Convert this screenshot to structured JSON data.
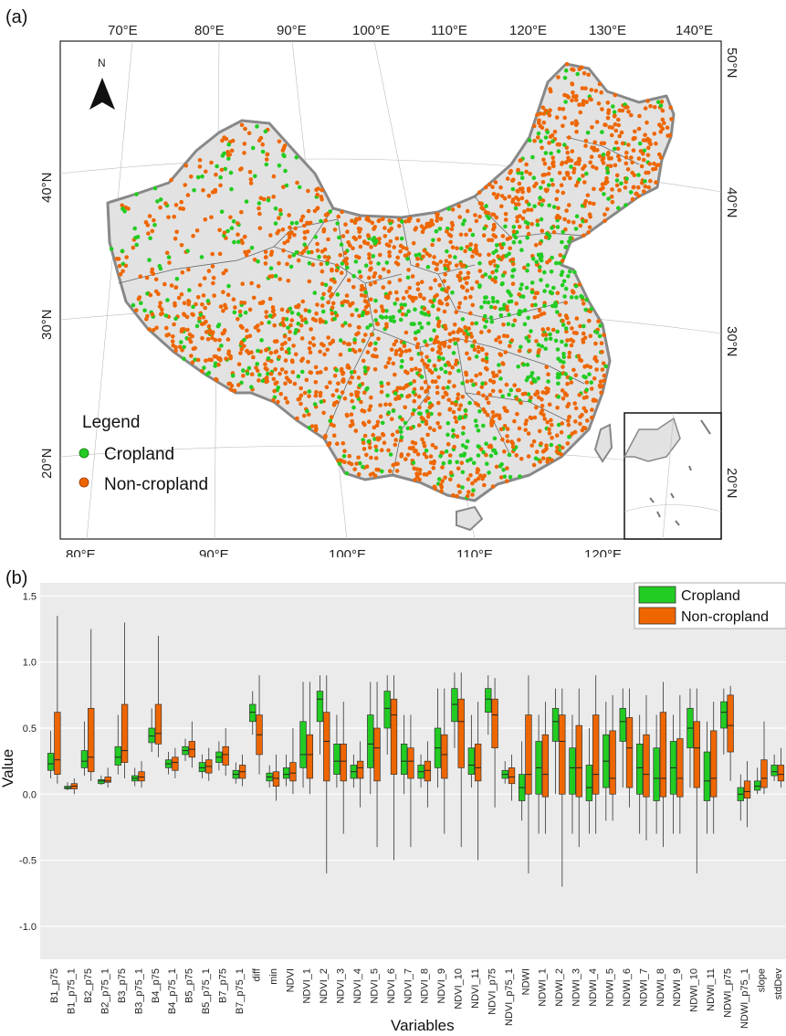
{
  "panel_a": {
    "label": "(a)",
    "north_label": "N",
    "top_ticks": [
      "70°E",
      "80°E",
      "90°E",
      "100°E",
      "110°E",
      "120°E",
      "130°E",
      "140°E"
    ],
    "bottom_ticks": [
      "80°E",
      "90°E",
      "100°E",
      "110°E",
      "120°E"
    ],
    "left_ticks": [
      "40°N",
      "30°N",
      "20°N"
    ],
    "right_ticks": [
      "50°N",
      "40°N",
      "30°N",
      "20°N"
    ],
    "inset_ticks": [
      "20°N"
    ],
    "legend": {
      "title": "Legend",
      "items": [
        {
          "label": "Cropland",
          "color": "#22cc22"
        },
        {
          "label": "Non-cropland",
          "color": "#ee6600"
        }
      ]
    }
  },
  "panel_b": {
    "label": "(b)",
    "chart_data": {
      "type": "box",
      "xlabel": "Variables",
      "ylabel": "Value",
      "ylim": [
        -1.25,
        1.6
      ],
      "yticks": [
        -1.0,
        -0.5,
        0.0,
        0.5,
        1.0,
        1.5
      ],
      "ytick_labels": [
        "-1.0",
        "-0.5",
        "0.0",
        "0.5",
        "1.0",
        "1.5"
      ],
      "legend": [
        {
          "name": "Cropland",
          "color": "#22cc22"
        },
        {
          "name": "Non-cropland",
          "color": "#ee6600"
        }
      ],
      "legend_position": "top-right",
      "grid": true,
      "categories": [
        {
          "name": "B1_p75",
          "crop": [
            0.12,
            0.18,
            0.23,
            0.31,
            0.48
          ],
          "non": [
            0.08,
            0.15,
            0.26,
            0.62,
            1.35
          ]
        },
        {
          "name": "B1_p75_1",
          "crop": [
            0.03,
            0.04,
            0.05,
            0.06,
            0.09
          ],
          "non": [
            0.0,
            0.04,
            0.06,
            0.08,
            0.12
          ]
        },
        {
          "name": "B2_p75",
          "crop": [
            0.14,
            0.2,
            0.25,
            0.33,
            0.55
          ],
          "non": [
            0.1,
            0.17,
            0.28,
            0.65,
            1.25
          ]
        },
        {
          "name": "B2_p75_1",
          "crop": [
            0.07,
            0.08,
            0.1,
            0.11,
            0.14
          ],
          "non": [
            0.05,
            0.09,
            0.1,
            0.13,
            0.2
          ]
        },
        {
          "name": "B3_p75",
          "crop": [
            0.15,
            0.22,
            0.28,
            0.36,
            0.6
          ],
          "non": [
            0.12,
            0.24,
            0.33,
            0.68,
            1.3
          ]
        },
        {
          "name": "B3_p75_1",
          "crop": [
            0.06,
            0.1,
            0.12,
            0.14,
            0.2
          ],
          "non": [
            0.05,
            0.1,
            0.13,
            0.17,
            0.25
          ]
        },
        {
          "name": "B4_p75",
          "crop": [
            0.32,
            0.39,
            0.44,
            0.5,
            0.65
          ],
          "non": [
            0.28,
            0.38,
            0.46,
            0.68,
            1.2
          ]
        },
        {
          "name": "B4_p75_1",
          "crop": [
            0.15,
            0.2,
            0.23,
            0.26,
            0.32
          ],
          "non": [
            0.12,
            0.18,
            0.24,
            0.28,
            0.35
          ]
        },
        {
          "name": "B5_p75",
          "crop": [
            0.25,
            0.3,
            0.33,
            0.36,
            0.42
          ],
          "non": [
            0.2,
            0.28,
            0.34,
            0.4,
            0.55
          ]
        },
        {
          "name": "B5_p75_1",
          "crop": [
            0.12,
            0.17,
            0.2,
            0.24,
            0.3
          ],
          "non": [
            0.1,
            0.16,
            0.21,
            0.26,
            0.35
          ]
        },
        {
          "name": "B7_p75",
          "crop": [
            0.18,
            0.24,
            0.28,
            0.32,
            0.4
          ],
          "non": [
            0.14,
            0.22,
            0.3,
            0.36,
            0.5
          ]
        },
        {
          "name": "B7_p75_1",
          "crop": [
            0.08,
            0.12,
            0.15,
            0.18,
            0.24
          ],
          "non": [
            0.06,
            0.12,
            0.17,
            0.22,
            0.3
          ]
        },
        {
          "name": "diff",
          "crop": [
            0.45,
            0.55,
            0.62,
            0.68,
            0.78
          ],
          "non": [
            0.15,
            0.3,
            0.45,
            0.6,
            0.9
          ]
        },
        {
          "name": "min",
          "crop": [
            0.05,
            0.1,
            0.13,
            0.16,
            0.22
          ],
          "non": [
            -0.05,
            0.06,
            0.12,
            0.17,
            0.3
          ]
        },
        {
          "name": "NDVI",
          "crop": [
            0.06,
            0.12,
            0.15,
            0.2,
            0.3
          ],
          "non": [
            0.0,
            0.1,
            0.16,
            0.24,
            0.5
          ]
        },
        {
          "name": "NDVI_1",
          "crop": [
            0.05,
            0.2,
            0.3,
            0.55,
            0.85
          ],
          "non": [
            0.0,
            0.12,
            0.3,
            0.45,
            0.85
          ]
        },
        {
          "name": "NDVI_2",
          "crop": [
            0.3,
            0.55,
            0.72,
            0.78,
            0.9
          ],
          "non": [
            -0.6,
            0.1,
            0.4,
            0.62,
            0.9
          ]
        },
        {
          "name": "NDVI_3",
          "crop": [
            0.05,
            0.15,
            0.25,
            0.38,
            0.6
          ],
          "non": [
            -0.3,
            0.1,
            0.25,
            0.38,
            0.7
          ]
        },
        {
          "name": "NDVI_4",
          "crop": [
            0.05,
            0.12,
            0.17,
            0.22,
            0.3
          ],
          "non": [
            -0.1,
            0.12,
            0.2,
            0.25,
            0.4
          ]
        },
        {
          "name": "NDVI_5",
          "crop": [
            0.0,
            0.2,
            0.38,
            0.6,
            0.85
          ],
          "non": [
            -0.4,
            0.1,
            0.35,
            0.5,
            0.85
          ]
        },
        {
          "name": "NDVI_6",
          "crop": [
            0.3,
            0.5,
            0.65,
            0.78,
            0.9
          ],
          "non": [
            -0.5,
            0.15,
            0.6,
            0.72,
            0.9
          ]
        },
        {
          "name": "NDVI_7",
          "crop": [
            0.0,
            0.15,
            0.25,
            0.38,
            0.6
          ],
          "non": [
            -0.4,
            0.12,
            0.25,
            0.35,
            0.6
          ]
        },
        {
          "name": "NDVI_8",
          "crop": [
            0.05,
            0.12,
            0.17,
            0.22,
            0.3
          ],
          "non": [
            -0.1,
            0.1,
            0.18,
            0.25,
            0.4
          ]
        },
        {
          "name": "NDVI_9",
          "crop": [
            0.05,
            0.2,
            0.35,
            0.5,
            0.8
          ],
          "non": [
            -0.3,
            0.12,
            0.3,
            0.45,
            0.8
          ]
        },
        {
          "name": "NDVI_10",
          "crop": [
            0.35,
            0.55,
            0.68,
            0.8,
            0.92
          ],
          "non": [
            -0.4,
            0.2,
            0.55,
            0.72,
            0.92
          ]
        },
        {
          "name": "NDVI_11",
          "crop": [
            0.05,
            0.15,
            0.22,
            0.35,
            0.6
          ],
          "non": [
            -0.5,
            0.1,
            0.2,
            0.38,
            0.7
          ]
        },
        {
          "name": "NDVI_p75",
          "crop": [
            0.45,
            0.62,
            0.72,
            0.8,
            0.9
          ],
          "non": [
            -0.1,
            0.35,
            0.6,
            0.72,
            0.88
          ]
        },
        {
          "name": "NDVI_p75_1",
          "crop": [
            0.08,
            0.12,
            0.15,
            0.18,
            0.25
          ],
          "non": [
            -0.05,
            0.08,
            0.13,
            0.2,
            0.3
          ]
        },
        {
          "name": "NDWI",
          "crop": [
            -0.2,
            -0.05,
            0.05,
            0.15,
            0.4
          ],
          "non": [
            -0.6,
            0.0,
            0.15,
            0.6,
            0.9
          ]
        },
        {
          "name": "NDWI_1",
          "crop": [
            -0.3,
            0.0,
            0.2,
            0.4,
            0.6
          ],
          "non": [
            -0.3,
            -0.02,
            0.15,
            0.45,
            0.7
          ]
        },
        {
          "name": "NDWI_2",
          "crop": [
            0.0,
            0.4,
            0.55,
            0.65,
            0.8
          ],
          "non": [
            -0.7,
            0.0,
            0.4,
            0.6,
            0.8
          ]
        },
        {
          "name": "NDWI_3",
          "crop": [
            -0.3,
            0.0,
            0.2,
            0.35,
            0.6
          ],
          "non": [
            -0.4,
            -0.02,
            0.2,
            0.52,
            0.8
          ]
        },
        {
          "name": "NDWI_4",
          "crop": [
            -0.3,
            -0.05,
            0.05,
            0.22,
            0.5
          ],
          "non": [
            -0.3,
            0.0,
            0.15,
            0.6,
            0.9
          ]
        },
        {
          "name": "NDWI_5",
          "crop": [
            -0.2,
            0.05,
            0.25,
            0.45,
            0.7
          ],
          "non": [
            -0.2,
            0.0,
            0.12,
            0.48,
            0.75
          ]
        },
        {
          "name": "NDWI_6",
          "crop": [
            0.05,
            0.4,
            0.55,
            0.65,
            0.8
          ],
          "non": [
            -0.1,
            0.05,
            0.35,
            0.58,
            0.8
          ]
        },
        {
          "name": "NDWI_7",
          "crop": [
            -0.3,
            0.0,
            0.2,
            0.38,
            0.6
          ],
          "non": [
            -0.35,
            -0.02,
            0.15,
            0.45,
            0.75
          ]
        },
        {
          "name": "NDWI_8",
          "crop": [
            -0.3,
            -0.05,
            0.12,
            0.35,
            0.6
          ],
          "non": [
            -0.4,
            -0.02,
            0.12,
            0.62,
            0.85
          ]
        },
        {
          "name": "NDWI_9",
          "crop": [
            -0.3,
            0.0,
            0.2,
            0.4,
            0.6
          ],
          "non": [
            -0.3,
            -0.02,
            0.12,
            0.42,
            0.75
          ]
        },
        {
          "name": "NDWI_10",
          "crop": [
            0.05,
            0.35,
            0.5,
            0.65,
            0.8
          ],
          "non": [
            -0.6,
            0.05,
            0.35,
            0.55,
            0.8
          ]
        },
        {
          "name": "NDWI_11",
          "crop": [
            -0.3,
            -0.05,
            0.1,
            0.32,
            0.55
          ],
          "non": [
            -0.3,
            -0.02,
            0.12,
            0.48,
            0.7
          ]
        },
        {
          "name": "NDWI_p75",
          "crop": [
            0.3,
            0.5,
            0.62,
            0.7,
            0.8
          ],
          "non": [
            0.1,
            0.32,
            0.52,
            0.75,
            0.82
          ]
        },
        {
          "name": "NDWI_p75_1",
          "crop": [
            -0.2,
            -0.05,
            0.0,
            0.05,
            0.15
          ],
          "non": [
            -0.25,
            -0.03,
            0.02,
            0.1,
            0.25
          ]
        },
        {
          "name": "slope",
          "crop": [
            0.0,
            0.03,
            0.06,
            0.1,
            0.2
          ],
          "non": [
            0.0,
            0.05,
            0.12,
            0.26,
            0.55
          ]
        },
        {
          "name": "stdDev",
          "crop": [
            0.1,
            0.14,
            0.17,
            0.22,
            0.3
          ],
          "non": [
            0.05,
            0.1,
            0.15,
            0.22,
            0.35
          ]
        }
      ]
    }
  }
}
